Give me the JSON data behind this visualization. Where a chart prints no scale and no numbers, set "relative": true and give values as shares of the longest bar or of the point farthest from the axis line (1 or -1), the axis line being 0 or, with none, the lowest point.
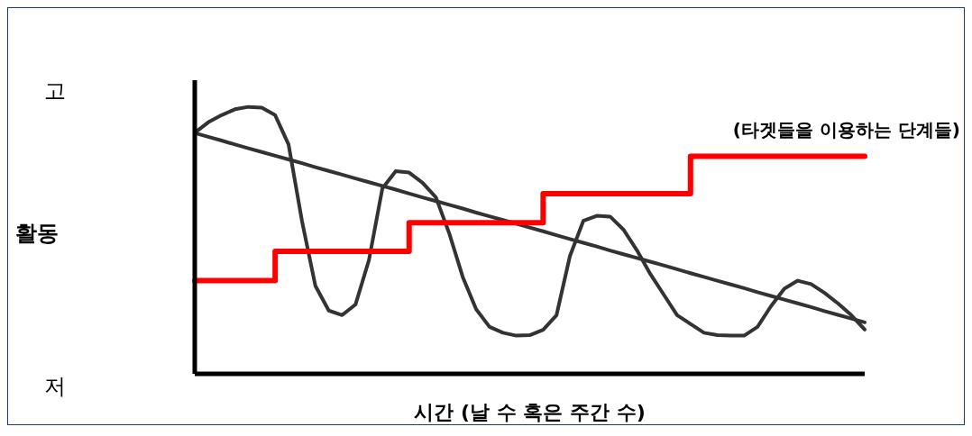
{
  "chart_data": {
    "type": "line",
    "xlabel": "시간 (날 수 혹은 주간 수)",
    "annotations": [
      "고",
      "활동",
      "저"
    ],
    "categories": [
      null,
      null,
      null,
      null,
      null,
      null,
      null,
      null,
      null,
      null,
      null,
      null,
      null,
      null,
      null,
      null,
      null,
      null,
      null,
      null,
      null,
      null,
      null,
      null,
      null,
      null,
      null,
      null,
      null,
      null,
      null,
      null,
      null,
      null,
      null,
      null,
      null,
      null,
      null,
      null,
      null,
      null,
      null,
      null,
      null,
      null,
      null,
      null,
      null,
      null,
      null
    ],
    "relative": true,
    "marker": "none",
    "line_style": "solid",
    "series": [
      {
        "color": "#333333",
        "values": [
          0.903,
          0.942,
          0.969,
          0.991,
          1,
          0.997,
          0.969,
          0.859,
          0.573,
          0.33,
          0.237,
          0.22,
          0.26,
          0.426,
          0.694,
          0.759,
          0.754,
          0.716,
          0.661,
          0.525,
          0.363,
          0.242,
          0.176,
          0.154,
          0.143,
          0.145,
          0.165,
          0.22,
          0.441,
          0.573,
          0.592,
          0.589,
          0.54,
          0.463,
          0.374,
          0.297,
          0.22,
          0.187,
          0.154,
          0.145,
          0.143,
          0.143,
          0.176,
          0.253,
          0.319,
          0.349,
          0.336,
          0.303,
          0.264,
          0.22,
          0.166
        ]
      },
      {
        "color": "#333333",
        "values": [
          0.902,
          0.888,
          0.874,
          0.859,
          0.845,
          0.831,
          0.817,
          0.803,
          0.789,
          0.774,
          0.76,
          0.746,
          0.732,
          0.718,
          0.704,
          0.69,
          0.675,
          0.661,
          0.647,
          0.633,
          0.619,
          0.604,
          0.59,
          0.576,
          0.562,
          0.548,
          0.534,
          0.519,
          0.505,
          0.491,
          0.477,
          0.462,
          0.448,
          0.434,
          0.42,
          0.406,
          0.392,
          0.377,
          0.363,
          0.349,
          0.335,
          0.321,
          0.306,
          0.292,
          0.278,
          0.264,
          0.25,
          0.235,
          0.221,
          0.207,
          0.193
        ]
      },
      {
        "type": "step",
        "name": "(타겟들을 이용하는 단계들)",
        "color": "#ff0000",
        "values": [
          0.349,
          0.349,
          0.349,
          0.349,
          0.349,
          0.349,
          0.459,
          0.459,
          0.459,
          0.459,
          0.459,
          0.459,
          0.459,
          0.459,
          0.459,
          0.459,
          0.566,
          0.566,
          0.566,
          0.566,
          0.566,
          0.566,
          0.566,
          0.566,
          0.566,
          0.566,
          0.675,
          0.675,
          0.675,
          0.675,
          0.675,
          0.675,
          0.675,
          0.675,
          0.675,
          0.675,
          0.675,
          0.815,
          0.815,
          0.815,
          0.815,
          0.815,
          0.815,
          0.815,
          0.815,
          0.815,
          0.815,
          0.815,
          0.815,
          0.815,
          0.815
        ]
      }
    ]
  }
}
